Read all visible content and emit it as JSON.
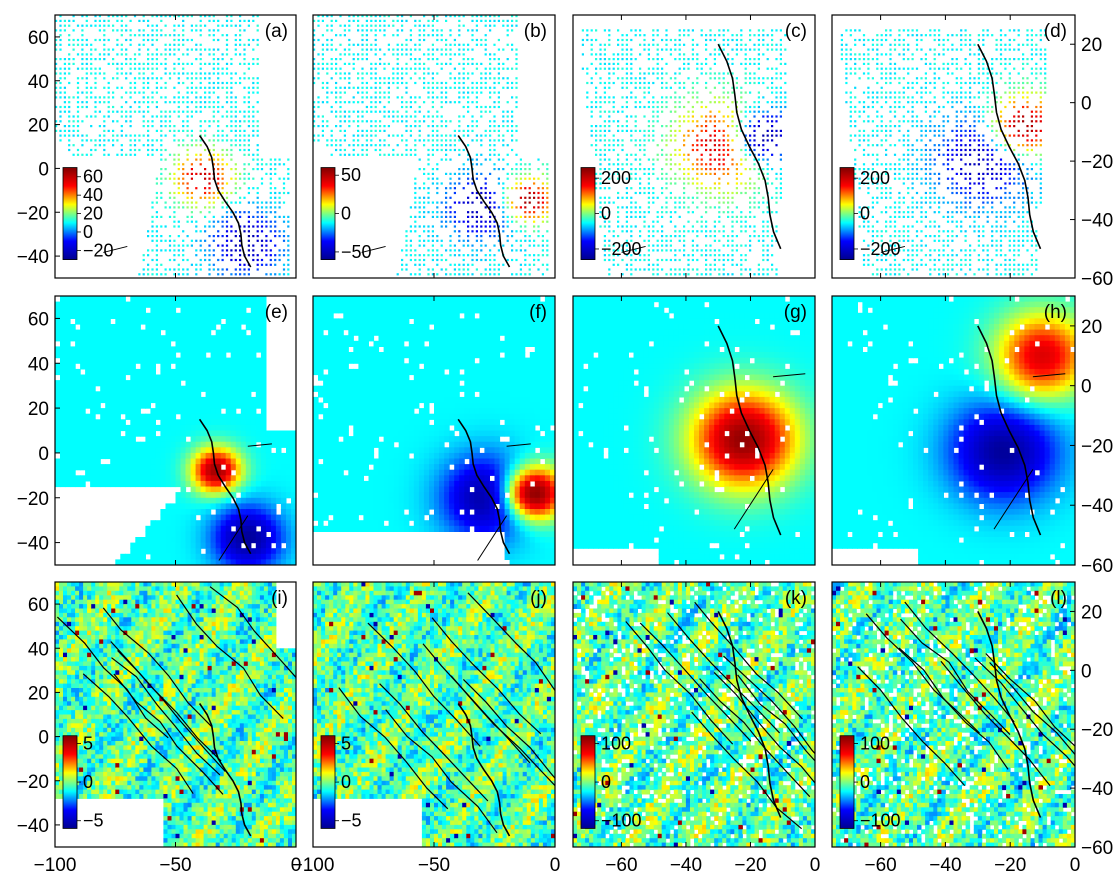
{
  "chart_data": {
    "type": "heatmap",
    "colormap": [
      "#00008f",
      "#0000ff",
      "#00ffff",
      "#ffff00",
      "#ff0000",
      "#800000"
    ],
    "layout": {
      "rows": 3,
      "cols": 4
    },
    "left_y_ticks": [
      "60",
      "40",
      "20",
      "0",
      "−20",
      "−40"
    ],
    "right_y_ticks": [
      "20",
      "0",
      "−20",
      "−40",
      "−60"
    ],
    "columns": [
      {
        "xlim": [
          -100,
          0
        ],
        "xticks": [
          "−100",
          "−50",
          "0"
        ],
        "ylim": [
          -50,
          70
        ],
        "y_axis_side": "left"
      },
      {
        "xlim": [
          -100,
          0
        ],
        "xticks": [
          "−100",
          "−50",
          "0"
        ],
        "ylim": [
          -50,
          70
        ],
        "y_axis_side": "none"
      },
      {
        "xlim": [
          -75,
          0
        ],
        "xticks": [
          "−60",
          "−40",
          "−20",
          "0"
        ],
        "ylim": [
          -60,
          30
        ],
        "y_axis_side": "none"
      },
      {
        "xlim": [
          -75,
          0
        ],
        "xticks": [
          "−60",
          "−40",
          "−20",
          "0"
        ],
        "ylim": [
          -60,
          30
        ],
        "y_axis_side": "right"
      }
    ],
    "panels": [
      {
        "label": "(a)",
        "row": 0,
        "col": 0,
        "kind": "points",
        "colorbar": {
          "ticks": [
            "60",
            "40",
            "20",
            "0",
            "−20"
          ],
          "range": [
            -30,
            70
          ]
        },
        "lobes": [
          {
            "cx": -38,
            "cy": -5,
            "r": 12,
            "v": 0.9
          },
          {
            "cx": -20,
            "cy": -35,
            "r": 14,
            "v": 0.05
          }
        ]
      },
      {
        "label": "(b)",
        "row": 0,
        "col": 1,
        "kind": "points",
        "colorbar": {
          "ticks": [
            "50",
            "0",
            "−50"
          ],
          "range": [
            -60,
            60
          ]
        },
        "lobes": [
          {
            "cx": -30,
            "cy": -18,
            "r": 14,
            "v": 0.05
          },
          {
            "cx": -10,
            "cy": -15,
            "r": 10,
            "v": 0.95
          }
        ]
      },
      {
        "label": "(c)",
        "row": 0,
        "col": 2,
        "kind": "points",
        "colorbar": {
          "ticks": [
            "200",
            "0",
            "−200"
          ],
          "range": [
            -260,
            260
          ]
        },
        "lobes": [
          {
            "cx": -28,
            "cy": -15,
            "r": 14,
            "v": 0.95
          },
          {
            "cx": -15,
            "cy": -12,
            "r": 10,
            "v": 0.05
          }
        ]
      },
      {
        "label": "(d)",
        "row": 0,
        "col": 3,
        "kind": "points",
        "colorbar": {
          "ticks": [
            "200",
            "0",
            "−200"
          ],
          "range": [
            -260,
            260
          ]
        },
        "lobes": [
          {
            "cx": -28,
            "cy": -20,
            "r": 14,
            "v": 0.05
          },
          {
            "cx": -15,
            "cy": -8,
            "r": 10,
            "v": 0.95
          }
        ]
      },
      {
        "label": "(e)",
        "row": 1,
        "col": 0,
        "kind": "field",
        "colorbar": null,
        "lobes": [
          {
            "cx": -33,
            "cy": -8,
            "r": 10,
            "v": 0.95
          },
          {
            "cx": -20,
            "cy": -38,
            "r": 14,
            "v": 0.02
          }
        ]
      },
      {
        "label": "(f)",
        "row": 1,
        "col": 1,
        "kind": "field",
        "colorbar": null,
        "lobes": [
          {
            "cx": -28,
            "cy": -20,
            "r": 18,
            "v": 0.03
          },
          {
            "cx": -8,
            "cy": -18,
            "r": 12,
            "v": 0.97
          }
        ]
      },
      {
        "label": "(g)",
        "row": 1,
        "col": 2,
        "kind": "field",
        "colorbar": null,
        "lobes": [
          {
            "cx": -22,
            "cy": -18,
            "r": 16,
            "v": 0.97
          }
        ]
      },
      {
        "label": "(h)",
        "row": 1,
        "col": 3,
        "kind": "field",
        "colorbar": null,
        "lobes": [
          {
            "cx": -22,
            "cy": -22,
            "r": 16,
            "v": 0.02
          },
          {
            "cx": -10,
            "cy": 10,
            "r": 14,
            "v": 0.85
          }
        ]
      },
      {
        "label": "(i)",
        "row": 2,
        "col": 0,
        "kind": "residual",
        "colorbar": {
          "ticks": [
            "5",
            "0",
            "−5"
          ],
          "range": [
            -6,
            6
          ]
        },
        "lobes": []
      },
      {
        "label": "(j)",
        "row": 2,
        "col": 1,
        "kind": "residual",
        "colorbar": {
          "ticks": [
            "5",
            "0",
            "−5"
          ],
          "range": [
            -6,
            6
          ]
        },
        "lobes": []
      },
      {
        "label": "(k)",
        "row": 2,
        "col": 2,
        "kind": "residual",
        "colorbar": {
          "ticks": [
            "100",
            "0",
            "−100"
          ],
          "range": [
            -120,
            120
          ]
        },
        "lobes": []
      },
      {
        "label": "(l)",
        "row": 2,
        "col": 3,
        "kind": "residual",
        "colorbar": {
          "ticks": [
            "100",
            "0",
            "−100"
          ],
          "range": [
            -120,
            120
          ]
        },
        "lobes": []
      }
    ]
  }
}
